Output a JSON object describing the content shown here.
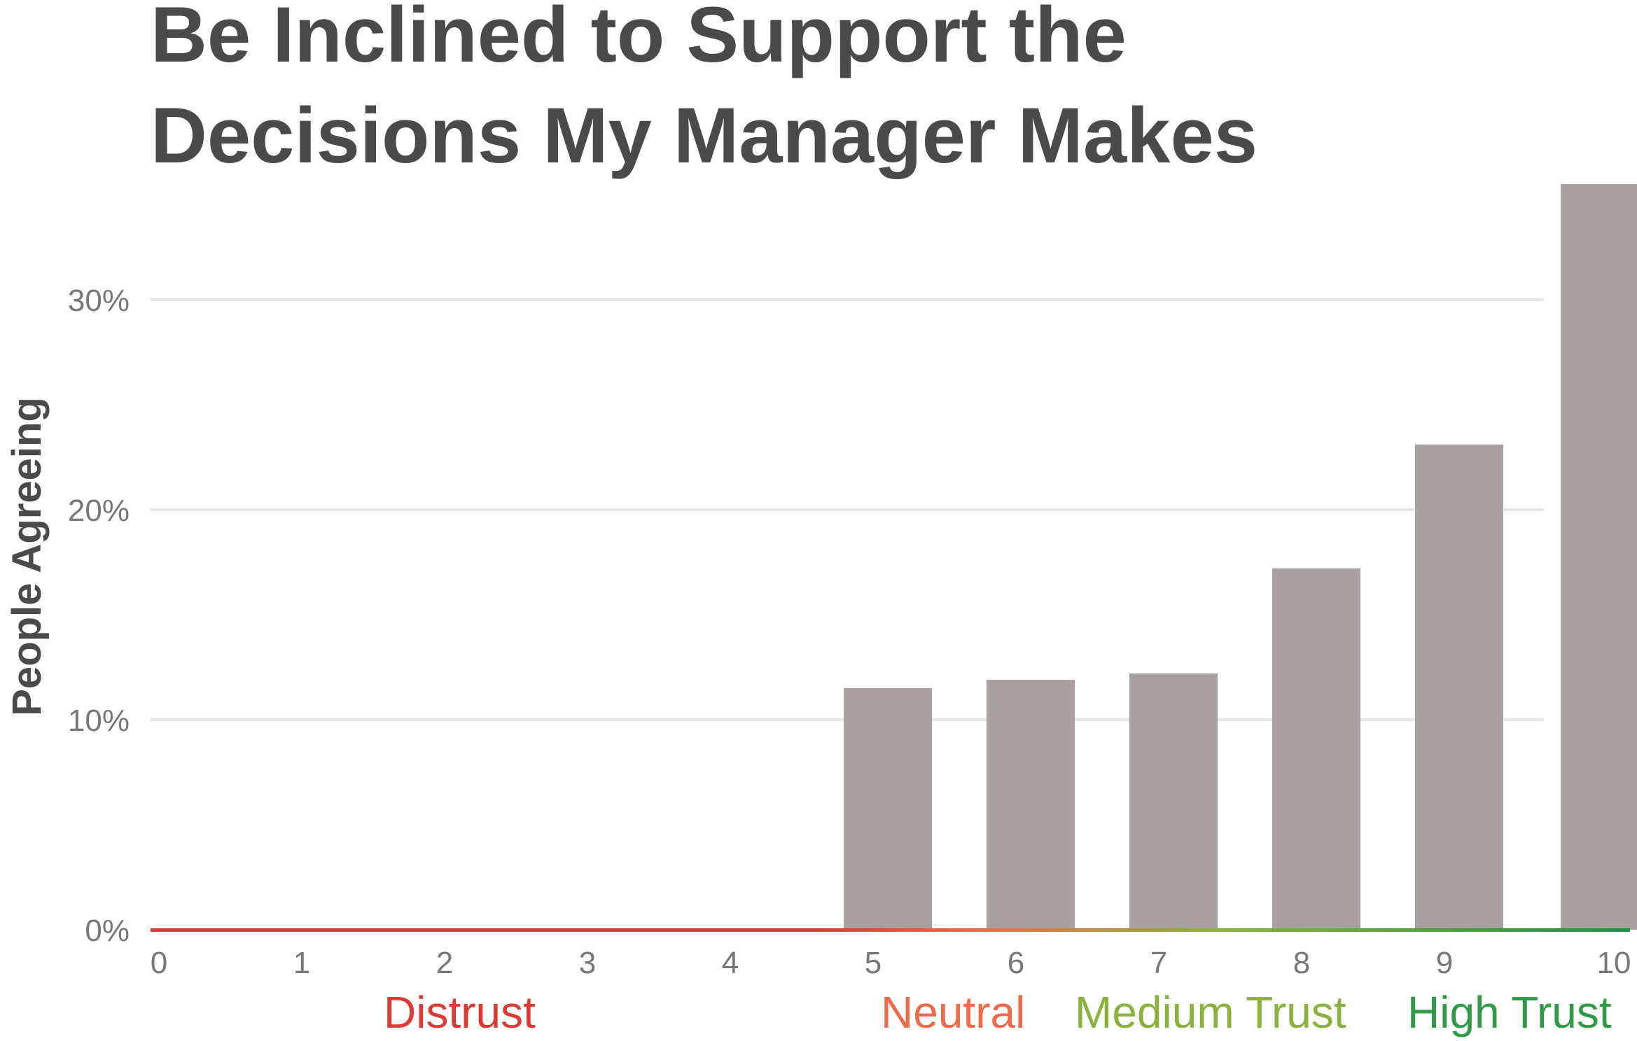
{
  "chart_data": {
    "type": "bar",
    "title_lines": [
      "Be Inclined to Support the",
      "Decisions My Manager Makes"
    ],
    "ylabel": "People Agreeing",
    "xlabel": "",
    "categories": [
      "0",
      "1",
      "2",
      "3",
      "4",
      "5",
      "6",
      "7",
      "8",
      "9",
      "10"
    ],
    "values": [
      0,
      0,
      0,
      0,
      0,
      11.5,
      11.9,
      12.2,
      17.2,
      23.1,
      35.5
    ],
    "y_ticks": [
      "0%",
      "10%",
      "20%",
      "30%"
    ],
    "y_tick_values": [
      0,
      10,
      20,
      30
    ],
    "ylim": [
      0,
      36
    ],
    "grid": true,
    "bar_color": "#a9a19f",
    "trust_bands": [
      {
        "label": "Distrust",
        "color": "#dc3b35"
      },
      {
        "label": "Neutral",
        "color": "#ec6b49"
      },
      {
        "label": "Medium Trust",
        "color": "#8bb23c"
      },
      {
        "label": "High Trust",
        "color": "#2f9a48"
      }
    ]
  }
}
